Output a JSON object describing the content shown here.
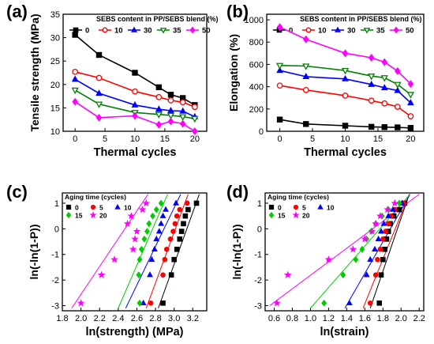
{
  "chart_data": [
    {
      "panel_label": "(a)",
      "type": "line",
      "xlabel": "Thermal cycles",
      "ylabel": "Tensile strength (MPa)",
      "xlim": [
        -2,
        22
      ],
      "ylim": [
        10,
        35
      ],
      "xticks": [
        "0",
        "5",
        "10",
        "15",
        "20"
      ],
      "yticks": [
        "10",
        "15",
        "20",
        "25",
        "30",
        "35"
      ],
      "legend_title": "SEBS content in PP/SEBS blend (%)",
      "legend_placement": "top",
      "x": [
        0,
        4,
        10,
        14,
        16,
        18,
        20
      ],
      "series": [
        {
          "name": "0",
          "color": "#000000",
          "marker": "square",
          "values": [
            30.6,
            26.3,
            22.5,
            19.4,
            17.8,
            17.1,
            15.6
          ]
        },
        {
          "name": "10",
          "color": "#ff0000",
          "marker": "circle-open",
          "values": [
            22.7,
            21.4,
            18.5,
            17.3,
            16.6,
            16.2,
            15.2
          ]
        },
        {
          "name": "30",
          "color": "#0000ff",
          "marker": "triangle",
          "values": [
            21.1,
            18.1,
            15.6,
            14.7,
            14.4,
            14.3,
            13.1
          ]
        },
        {
          "name": "35",
          "color": "#008000",
          "marker": "triangle-down-open",
          "values": [
            18.8,
            15.8,
            14.0,
            13.6,
            13.4,
            13.1,
            12.7
          ]
        },
        {
          "name": "50",
          "color": "#ff00ff",
          "marker": "diamond",
          "values": [
            16.3,
            12.9,
            13.3,
            11.4,
            12.1,
            11.6,
            10.0
          ]
        }
      ]
    },
    {
      "panel_label": "(b)",
      "type": "line",
      "xlabel": "Thermal cycles",
      "ylabel": "Elongation (%)",
      "xlim": [
        -2,
        22
      ],
      "ylim": [
        0,
        1050
      ],
      "xticks": [
        "0",
        "5",
        "10",
        "15",
        "20"
      ],
      "yticks": [
        "0",
        "200",
        "400",
        "600",
        "800",
        "1000"
      ],
      "legend_title": "SEBS content in PP/SEBS blend (%)",
      "legend_placement": "top",
      "x": [
        0,
        4,
        10,
        14,
        16,
        18,
        20
      ],
      "series": [
        {
          "name": "0",
          "color": "#000000",
          "marker": "square",
          "values": [
            105,
            65,
            50,
            40,
            37,
            35,
            30
          ]
        },
        {
          "name": "10",
          "color": "#ff0000",
          "marker": "circle-open",
          "values": [
            410,
            370,
            320,
            275,
            250,
            220,
            135
          ]
        },
        {
          "name": "30",
          "color": "#0000ff",
          "marker": "triangle",
          "values": [
            545,
            490,
            470,
            420,
            390,
            365,
            255
          ]
        },
        {
          "name": "35",
          "color": "#008000",
          "marker": "triangle-down-open",
          "values": [
            590,
            585,
            545,
            495,
            480,
            420,
            330
          ]
        },
        {
          "name": "50",
          "color": "#ff00ff",
          "marker": "diamond",
          "values": [
            935,
            825,
            700,
            660,
            620,
            540,
            425
          ]
        }
      ]
    },
    {
      "panel_label": "(c)",
      "type": "scatter",
      "xlabel": "ln(strength) (MPa)",
      "ylabel": "ln(-ln(1-P))",
      "xlim": [
        1.8,
        3.35
      ],
      "ylim": [
        -3.2,
        1.4
      ],
      "xticks": [
        "1.8",
        "2.0",
        "2.2",
        "2.4",
        "2.6",
        "2.8",
        "3.0",
        "3.2"
      ],
      "yticks": [
        "-3",
        "-2",
        "-1",
        "0",
        "1"
      ],
      "legend_title": "Aging time (cycles)",
      "legend_placement": "top-left",
      "y_levels": [
        -2.9,
        -1.8,
        -1.2,
        -0.8,
        -0.4,
        -0.1,
        0.2,
        0.5,
        0.75,
        1.0
      ],
      "series": [
        {
          "name": "0",
          "color": "#000000",
          "marker": "square",
          "x": [
            2.88,
            2.97,
            3.0,
            3.03,
            3.06,
            3.08,
            3.1,
            3.12,
            3.15,
            3.24
          ],
          "fit": [
            [
              2.83,
              -3.1
            ],
            [
              3.27,
              1.35
            ]
          ]
        },
        {
          "name": "5",
          "color": "#ff0000",
          "marker": "circle",
          "x": [
            2.75,
            2.88,
            2.9,
            2.92,
            2.96,
            2.99,
            3.01,
            3.03,
            3.06,
            3.14
          ],
          "fit": [
            [
              2.7,
              -3.1
            ],
            [
              3.15,
              1.35
            ]
          ]
        },
        {
          "name": "10",
          "color": "#0000ff",
          "marker": "triangle",
          "x": [
            2.67,
            2.74,
            2.76,
            2.79,
            2.81,
            2.84,
            2.86,
            2.88,
            2.91,
            3.02
          ],
          "fit": [
            [
              2.48,
              -3.1
            ],
            [
              3.07,
              1.35
            ]
          ]
        },
        {
          "name": "15",
          "color": "#00cc00",
          "marker": "diamond",
          "x": [
            2.63,
            2.62,
            2.63,
            2.65,
            2.68,
            2.71,
            2.73,
            2.77,
            2.81,
            2.86
          ],
          "fit": [
            [
              2.4,
              -3.1
            ],
            [
              2.93,
              1.35
            ]
          ]
        },
        {
          "name": "20",
          "color": "#ff00ff",
          "marker": "star",
          "x": [
            2.0,
            2.22,
            2.36,
            2.56,
            2.58,
            2.6,
            2.5,
            2.54,
            2.66,
            2.7
          ],
          "fit": [
            [
              1.9,
              -3.1
            ],
            [
              2.72,
              1.35
            ]
          ]
        }
      ]
    },
    {
      "panel_label": "(d)",
      "type": "scatter",
      "xlabel": "ln(strain)",
      "ylabel": "ln(-ln(1-P))",
      "xlim": [
        0.5,
        2.25
      ],
      "ylim": [
        -3.2,
        1.4
      ],
      "xticks": [
        "0.6",
        "0.8",
        "1.0",
        "1.2",
        "1.4",
        "1.6",
        "1.8",
        "2.0",
        "2.2"
      ],
      "yticks": [
        "-3",
        "-2",
        "-1",
        "0",
        "1"
      ],
      "legend_title": "Aging time (cycles)",
      "legend_placement": "top-left",
      "y_levels": [
        -2.9,
        -1.8,
        -1.2,
        -0.8,
        -0.4,
        -0.1,
        0.2,
        0.5,
        0.75,
        1.0
      ],
      "series": [
        {
          "name": "0",
          "color": "#000000",
          "marker": "square",
          "x": [
            1.76,
            1.78,
            1.8,
            1.82,
            1.84,
            1.86,
            1.88,
            1.92,
            1.98,
            2.04
          ],
          "fit": [
            [
              1.66,
              -3.1
            ],
            [
              2.09,
              1.35
            ]
          ]
        },
        {
          "name": "5",
          "color": "#ff0000",
          "marker": "circle",
          "x": [
            1.66,
            1.72,
            1.74,
            1.77,
            1.8,
            1.83,
            1.86,
            1.89,
            1.93,
            2.03
          ],
          "fit": [
            [
              1.58,
              -3.1
            ],
            [
              2.09,
              1.35
            ]
          ]
        },
        {
          "name": "10",
          "color": "#0000ff",
          "marker": "triangle",
          "x": [
            1.43,
            1.62,
            1.66,
            1.71,
            1.75,
            1.78,
            1.81,
            1.86,
            1.91,
            2.01
          ],
          "fit": [
            [
              1.38,
              -3.1
            ],
            [
              2.1,
              1.35
            ]
          ]
        },
        {
          "name": "15",
          "color": "#00cc00",
          "marker": "diamond",
          "x": [
            1.15,
            1.36,
            1.5,
            1.57,
            1.62,
            1.67,
            1.72,
            1.79,
            1.86,
            1.98
          ],
          "fit": [
            [
              1.0,
              -3.1
            ],
            [
              2.1,
              1.35
            ]
          ]
        },
        {
          "name": "20",
          "color": "#ff00ff",
          "marker": "star",
          "x": [
            0.63,
            0.75,
            1.2,
            1.47,
            1.6,
            1.68,
            1.72,
            1.77,
            1.85,
            1.93
          ],
          "fit": [
            [
              0.55,
              -3.0
            ],
            [
              2.2,
              1.35
            ]
          ]
        }
      ]
    }
  ]
}
